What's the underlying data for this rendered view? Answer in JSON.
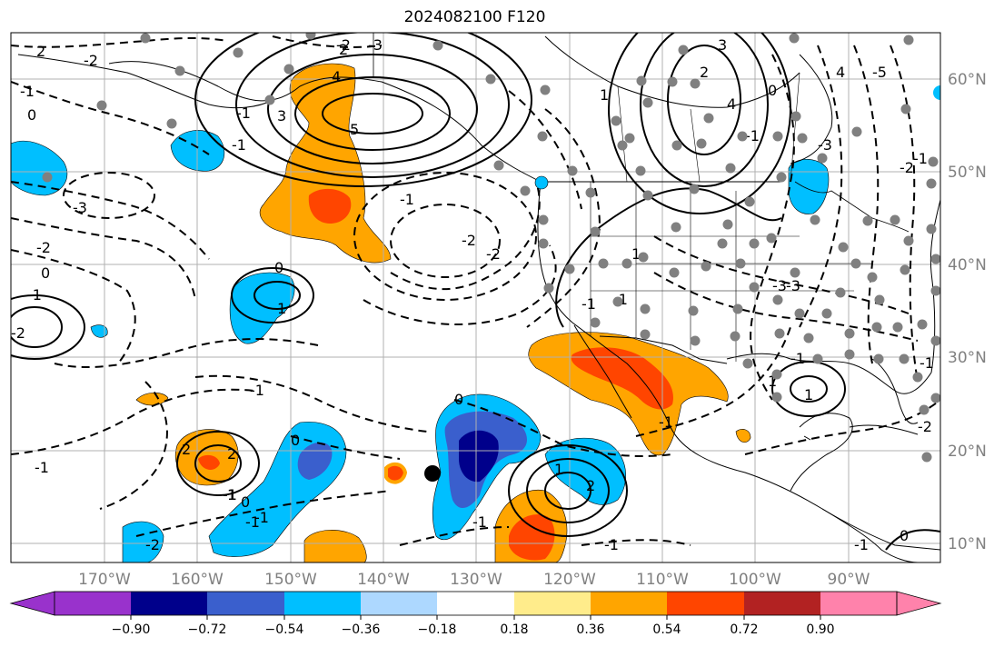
{
  "title": "2024082100 F120",
  "map": {
    "lon_labels": [
      "170°W",
      "160°W",
      "150°W",
      "140°W",
      "130°W",
      "120°W",
      "110°W",
      "100°W",
      "90°W"
    ],
    "lat_labels": [
      "60°N",
      "50°N",
      "40°N",
      "30°N",
      "20°N",
      "10°N"
    ],
    "grid": true,
    "contour_labels": [
      "2",
      "-2",
      "-1",
      "0",
      "-2",
      "-1",
      "-3",
      "-2",
      "0",
      "0",
      "2",
      "-1",
      "3",
      "4",
      "5",
      "2",
      "-3",
      "-1",
      "-1",
      "-2",
      "-2",
      "0",
      "1",
      "-2",
      "-3",
      "1",
      "-1",
      "-1",
      "-1",
      "4",
      "3",
      "2",
      "1",
      "0",
      "-1",
      "-5",
      "4",
      "-3",
      "-2",
      "-1",
      "-1",
      "1",
      "-3",
      "-1",
      "-2",
      "0",
      "-1",
      "-1",
      "-2",
      "-1",
      "0",
      "2",
      "1",
      "-1",
      "0",
      "1",
      "2",
      "-1",
      "-1",
      "-1",
      "-1",
      "1"
    ],
    "colors": {
      "ocean_bg": "#ffffff",
      "grid": "#b0b0b0",
      "coast": "#000000",
      "station": "#808080",
      "marker": "#000000"
    }
  },
  "colorbar": {
    "colors": [
      "#9932cc",
      "#00008b",
      "#3a5fcd",
      "#00bfff",
      "#add8ff",
      "#ffffff",
      "#ffec8b",
      "#ffa500",
      "#ff4500",
      "#b22222",
      "#ff82ab"
    ],
    "tick_labels": [
      "−0.90",
      "−0.72",
      "−0.54",
      "−0.36",
      "−0.18",
      "0.18",
      "0.36",
      "0.54",
      "0.72",
      "0.90"
    ]
  }
}
